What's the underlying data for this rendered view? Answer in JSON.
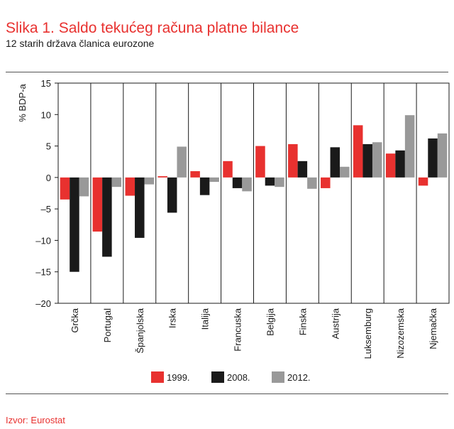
{
  "chart_data": {
    "type": "bar",
    "title": "Slika 1. Saldo tekućeg računa platne bilance",
    "subtitle": "12 starih država članica eurozone",
    "y_label": "% BDP-a",
    "source": "Izvor: Eurostat",
    "categories": [
      "Grčka",
      "Portugal",
      "Španjolska",
      "Irska",
      "Italija",
      "Francuska",
      "Belgija",
      "Finska",
      "Austrija",
      "Luksemburg",
      "Nizozemska",
      "Njemačka"
    ],
    "series": [
      {
        "name": "1999.",
        "color": "#e8312f",
        "values": [
          -3.5,
          -8.6,
          -2.9,
          0.2,
          1.0,
          2.6,
          5.0,
          5.3,
          -1.7,
          8.3,
          3.8,
          -1.3
        ]
      },
      {
        "name": "2008.",
        "color": "#1a1a1a",
        "values": [
          -15,
          -12.6,
          -9.6,
          -5.6,
          -2.8,
          -1.7,
          -1.3,
          2.6,
          4.8,
          5.3,
          4.3,
          6.2
        ]
      },
      {
        "name": "2012.",
        "color": "#999999",
        "values": [
          -3,
          -1.5,
          -1.1,
          4.9,
          -0.7,
          -2.2,
          -1.5,
          -1.8,
          1.7,
          5.6,
          9.9,
          7.0
        ]
      }
    ],
    "ylim": [
      -20,
      15
    ],
    "yticks": [
      {
        "value": -20,
        "label": "–20"
      },
      {
        "value": -15,
        "label": "–15"
      },
      {
        "value": -10,
        "label": "–10"
      },
      {
        "value": -5,
        "label": "–5"
      },
      0,
      5,
      10,
      15
    ]
  }
}
